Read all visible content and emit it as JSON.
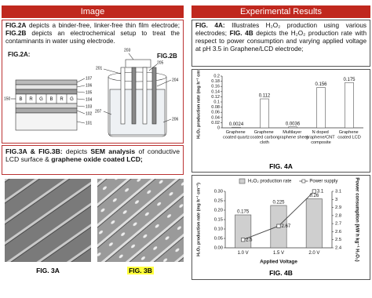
{
  "left": {
    "header": "Image",
    "intro": [
      "FIG.2A",
      " depicts a binder-free, linker-free thin film electrode; ",
      "FIG.2B",
      " depicts an electrochemical setup to treat the contaminants in water using electrode."
    ],
    "fig2a": {
      "label": "FIG.2A:",
      "layers": [
        "B",
        "R",
        "G",
        "B",
        "R",
        "G"
      ],
      "refs": [
        "107",
        "106",
        "105",
        "104",
        "103",
        "102",
        "101"
      ],
      "side": "150"
    },
    "fig2b": {
      "label": "FIG.2B",
      "refs": [
        "201",
        "203",
        "205",
        "204",
        "207",
        "206"
      ]
    },
    "sem_text": [
      "FIG.3A & FIG.3B:",
      " depicts ",
      "SEM analysis",
      " of conductive LCD surface & ",
      "graphene oxide coated LCD;"
    ],
    "captions": [
      "FIG. 3A",
      "FIG. 3B"
    ]
  },
  "right": {
    "header": "Experimental Results",
    "intro": [
      "FIG. 4A:",
      " Illustrates H₂O₂ production using various electrodes; ",
      "FIG. 4B",
      " depicts the H₂O₂ production rate with respect to power consumption and varying applied voltage at pH 3.5 in Graphene/LCD electrode;"
    ],
    "captions": [
      "FIG. 4A",
      "FIG. 4B"
    ]
  },
  "chart_data": [
    {
      "type": "bar",
      "categories": [
        "Graphene coated quartz",
        "Graphene coated carbon cloth",
        "Multilayer graphene sheet",
        "N doped graphene/CNT composite",
        "Graphene coated LCD"
      ],
      "values": [
        0.0024,
        0.112,
        0.0036,
        0.156,
        0.175
      ],
      "color": "#ffffff",
      "y_label": "H₂O₂ production rate (mg h⁻¹ cm⁻²)",
      "ylim": [
        0,
        0.2
      ],
      "yticks": [
        0,
        0.02,
        0.04,
        0.06,
        0.08,
        0.1,
        0.12,
        0.14,
        0.16,
        0.18,
        0.2
      ],
      "grid": false
    },
    {
      "type": "combo",
      "categories": [
        "1.0 V",
        "1.5 V",
        "2.0 V"
      ],
      "x_label": "Applied Voltage",
      "y_label": "H₂O₂ production rate (mg h⁻¹ cm⁻²)",
      "y2_label": "Power consumption (kW h kg⁻¹ H₂O₂)",
      "series": [
        {
          "name": "H₂O₂ production rate",
          "type": "bar",
          "color": "#cfcfcf",
          "values": [
            0.175,
            0.225,
            0.26
          ]
        },
        {
          "name": "Power supply",
          "type": "line",
          "color": "#444444",
          "axis": "y2",
          "values": [
            2.5,
            2.67,
            3.1
          ]
        }
      ],
      "ylim": [
        0,
        0.3
      ],
      "yticks": [
        {
          "value": 0,
          "label": "0.00"
        },
        {
          "value": 0.05,
          "label": "0.05"
        },
        {
          "value": 0.1,
          "label": "0.10"
        },
        {
          "value": 0.15,
          "label": "0.15"
        },
        {
          "value": 0.2,
          "label": "0.20"
        },
        {
          "value": 0.25,
          "label": "0.25"
        },
        {
          "value": 0.3,
          "label": "0.30"
        }
      ],
      "y2lim": [
        2.4,
        3.1
      ],
      "y2ticks": [
        2.4,
        2.5,
        2.6,
        2.7,
        2.8,
        2.9,
        3,
        3.1
      ],
      "grid": false,
      "legend": "top"
    }
  ]
}
